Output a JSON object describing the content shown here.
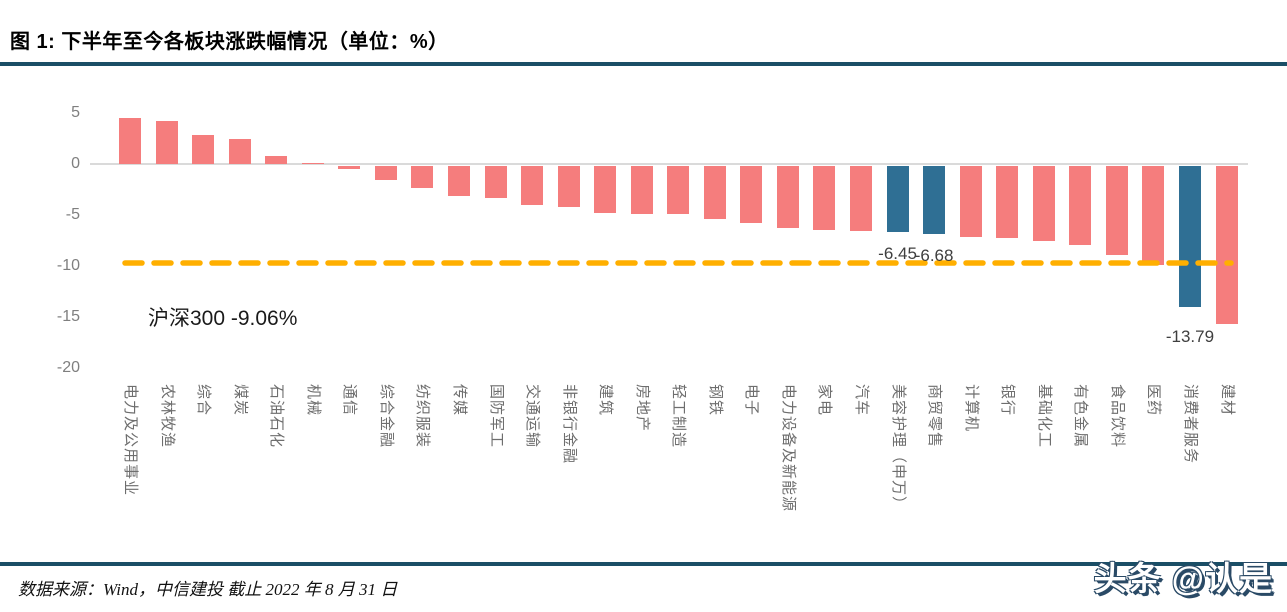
{
  "header": {
    "title": "图 1: 下半年至今各板块涨跌幅情况（单位：%）"
  },
  "chart_data": {
    "type": "bar",
    "title": "下半年至今各板块涨跌幅情况",
    "unit": "%",
    "xlabel": "",
    "ylabel": "",
    "ylim": [
      -20,
      6
    ],
    "yticks": [
      5,
      0,
      -5,
      -10,
      -15,
      -20
    ],
    "grid": false,
    "legend_position": "none",
    "benchmark": {
      "name": "沪深300",
      "value": -9.06,
      "label": "沪深300 -9.06%",
      "style": "dashed",
      "color": "#FFAF00"
    },
    "colors": {
      "default_bar": "#F57D7D",
      "highlight_bar": "#2F6F94"
    },
    "bars": [
      {
        "category": "电力及公用事业",
        "value": 4.5
      },
      {
        "category": "农林牧渔",
        "value": 4.2
      },
      {
        "category": "综合",
        "value": 2.8
      },
      {
        "category": "煤炭",
        "value": 2.5
      },
      {
        "category": "石油石化",
        "value": 0.8
      },
      {
        "category": "机械",
        "value": 0.1
      },
      {
        "category": "通信",
        "value": -0.3
      },
      {
        "category": "综合金融",
        "value": -1.4
      },
      {
        "category": "纺织服装",
        "value": -2.2
      },
      {
        "category": "传媒",
        "value": -2.9
      },
      {
        "category": "国防军工",
        "value": -3.1
      },
      {
        "category": "交通运输",
        "value": -3.8
      },
      {
        "category": "非银行金融",
        "value": -4.0
      },
      {
        "category": "建筑",
        "value": -4.6
      },
      {
        "category": "房地产",
        "value": -4.7
      },
      {
        "category": "轻工制造",
        "value": -4.7
      },
      {
        "category": "钢铁",
        "value": -5.2
      },
      {
        "category": "电子",
        "value": -5.6
      },
      {
        "category": "电力设备及新能源",
        "value": -6.1
      },
      {
        "category": "家电",
        "value": -6.3
      },
      {
        "category": "汽车",
        "value": -6.4
      },
      {
        "category": "美容护理（申万）",
        "value": -6.45,
        "highlight": true,
        "data_label": "-6.45"
      },
      {
        "category": "商贸零售",
        "value": -6.68,
        "highlight": true,
        "data_label": "-6.68"
      },
      {
        "category": "计算机",
        "value": -7.0
      },
      {
        "category": "银行",
        "value": -7.1
      },
      {
        "category": "基础化工",
        "value": -7.4
      },
      {
        "category": "有色金属",
        "value": -7.7
      },
      {
        "category": "食品饮料",
        "value": -8.7
      },
      {
        "category": "医药",
        "value": -9.7
      },
      {
        "category": "消费者服务",
        "value": -13.79,
        "highlight": true,
        "data_label": "-13.79"
      },
      {
        "category": "建材",
        "value": -15.5
      }
    ]
  },
  "footer": {
    "source": "数据来源：Wind，中信建投 截止 2022 年 8 月 31 日",
    "watermark": "头条 @认是"
  },
  "theme": {
    "accent_rule": "#1A4E66",
    "zero_axis_line": "#DADADA"
  }
}
